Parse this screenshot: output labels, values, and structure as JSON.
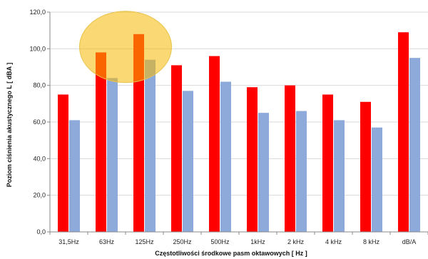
{
  "chart_data": {
    "type": "bar",
    "title": "",
    "xlabel": "Częstotliwości środkowe pasm oktawowych [ Hz ]",
    "ylabel": "Poziom ciśnienia akustycznego L [ dBA ]",
    "ylim": [
      0,
      120
    ],
    "ytick_labels": [
      "0,0",
      "20,0",
      "40,0",
      "60,0",
      "80,0",
      "100,0",
      "120,0"
    ],
    "categories": [
      "31,5Hz",
      "63Hz",
      "125Hz",
      "250Hz",
      "500Hz",
      "1kHz",
      "2 kHz",
      "4 kHz",
      "8 kHz",
      "dB/A"
    ],
    "series": [
      {
        "color": "#ff0000",
        "values": [
          75,
          98,
          108,
          91,
          96,
          79,
          80,
          75,
          71,
          109
        ]
      },
      {
        "color": "#8eaadb",
        "values": [
          61,
          84,
          94,
          77,
          82,
          65,
          66,
          61,
          57,
          95
        ]
      }
    ],
    "grid": true,
    "legend": "none",
    "highlight": {
      "categories": [
        "63Hz",
        "125Hz"
      ],
      "color": "#f5b800"
    }
  }
}
